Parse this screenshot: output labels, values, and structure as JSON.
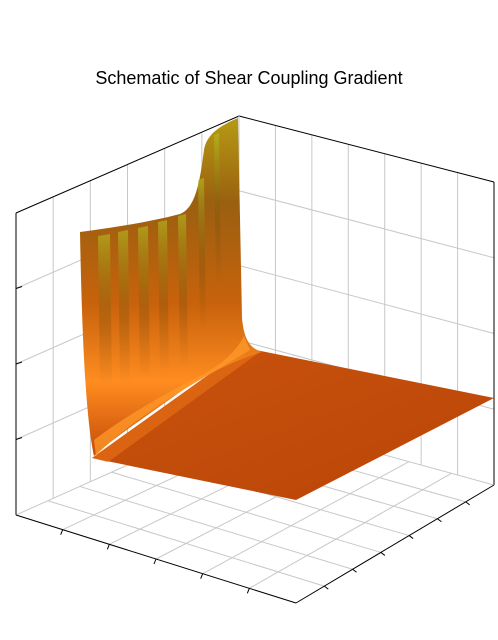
{
  "chart_data": {
    "type": "surface",
    "title": "Schematic of Shear Coupling Gradient",
    "xlabel": "",
    "ylabel": "",
    "zlabel": "",
    "grid": true,
    "colors": {
      "surface_base": "#c1490a",
      "surface_mid": "#ff8a1e",
      "surface_peak": "#a0b000",
      "grid": "#c8c8c8",
      "axis": "#000000"
    },
    "surface_profile": {
      "description_of_shape": "",
      "wall_height": 1.0,
      "plateau_height": 0.02,
      "falloff_scale": 0.06
    }
  }
}
